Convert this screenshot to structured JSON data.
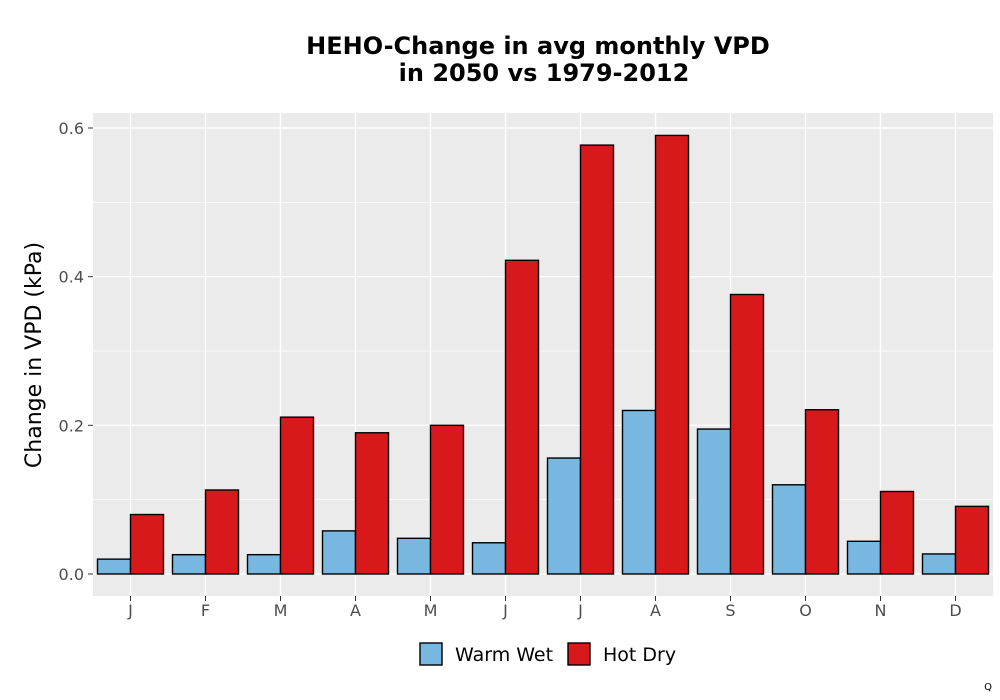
{
  "chart_data": {
    "type": "bar",
    "title_line1": "HEHO-Change in avg monthly VPD",
    "title_line2": "in 2050 vs 1979-2012",
    "xlabel": "",
    "ylabel": "Change in VPD (kPa)",
    "categories": [
      "J",
      "F",
      "M",
      "A",
      "M",
      "J",
      "J",
      "A",
      "S",
      "O",
      "N",
      "D"
    ],
    "ylim": [
      -0.03,
      0.62
    ],
    "yticks": [
      0.0,
      0.2,
      0.4,
      0.6
    ],
    "ytick_labels": [
      "0.0",
      "0.2",
      "0.4",
      "0.6"
    ],
    "grid": true,
    "legend_position": "bottom",
    "series": [
      {
        "name": "Warm Wet",
        "color": "#78b8e0",
        "values": [
          0.02,
          0.026,
          0.026,
          0.058,
          0.048,
          0.042,
          0.156,
          0.22,
          0.195,
          0.12,
          0.044,
          0.027
        ]
      },
      {
        "name": "Hot Dry",
        "color": "#d7191c",
        "values": [
          0.08,
          0.113,
          0.211,
          0.19,
          0.2,
          0.422,
          0.577,
          0.59,
          0.376,
          0.221,
          0.111,
          0.091
        ]
      }
    ],
    "panel_color": "#ebebeb",
    "footnote": "Q"
  }
}
